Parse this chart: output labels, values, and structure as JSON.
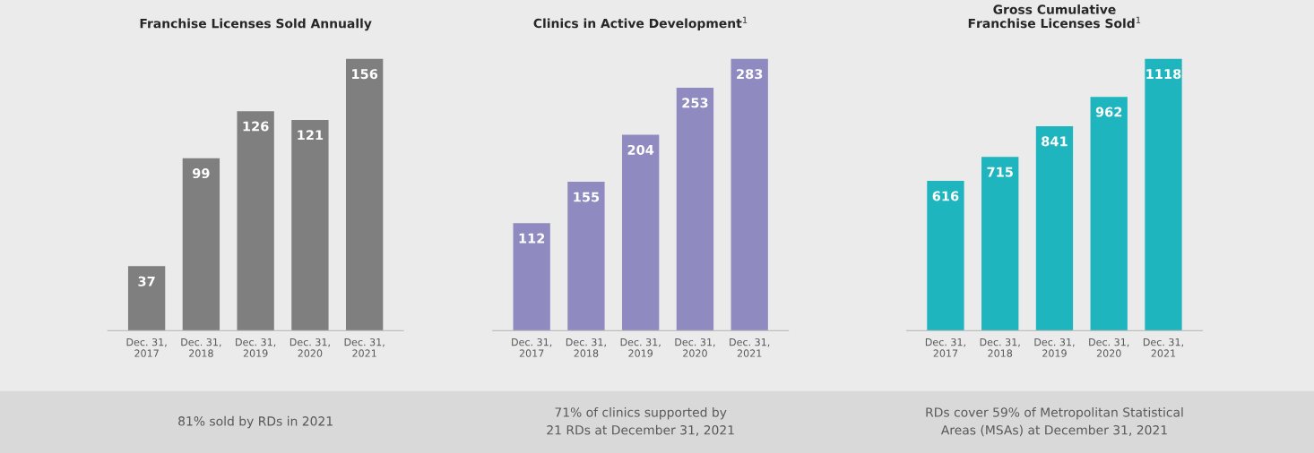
{
  "chart_data": [
    {
      "type": "bar",
      "title": "Franchise Licenses Sold Annually",
      "categories": [
        "Dec. 31,\n2017",
        "Dec. 31,\n2018",
        "Dec. 31,\n2019",
        "Dec. 31,\n2020",
        "Dec. 31,\n2021"
      ],
      "values": [
        37,
        99,
        126,
        121,
        156
      ],
      "color": "#7f7f7f",
      "data_labels": true,
      "annotations": [
        "81% sold by RDs in 2021"
      ]
    },
    {
      "type": "bar",
      "title": "Clinics in Active Development$^{1}$",
      "categories": [
        "Dec. 31,\n2017",
        "Dec. 31,\n2018",
        "Dec. 31,\n2019",
        "Dec. 31,\n2020",
        "Dec. 31,\n2021"
      ],
      "values": [
        112,
        155,
        204,
        253,
        283
      ],
      "color": "#8f8bc0",
      "data_labels": true,
      "annotations": [
        "71% of clinics supported by\n21 RDs at December 31, 2021"
      ]
    },
    {
      "type": "bar",
      "title": "Gross Cumulative\nFranchise Licenses Sold$^{1}$",
      "categories": [
        "Dec. 31,\n2017",
        "Dec. 31,\n2018",
        "Dec. 31,\n2019",
        "Dec. 31,\n2020",
        "Dec. 31,\n2021"
      ],
      "values": [
        616,
        715,
        841,
        962,
        1118
      ],
      "color": "#1fb5be",
      "data_labels": true,
      "annotations": [
        "RDs cover 59% of Metropolitan Statistical\nAreas (MSAs) at December 31, 2021"
      ]
    }
  ]
}
